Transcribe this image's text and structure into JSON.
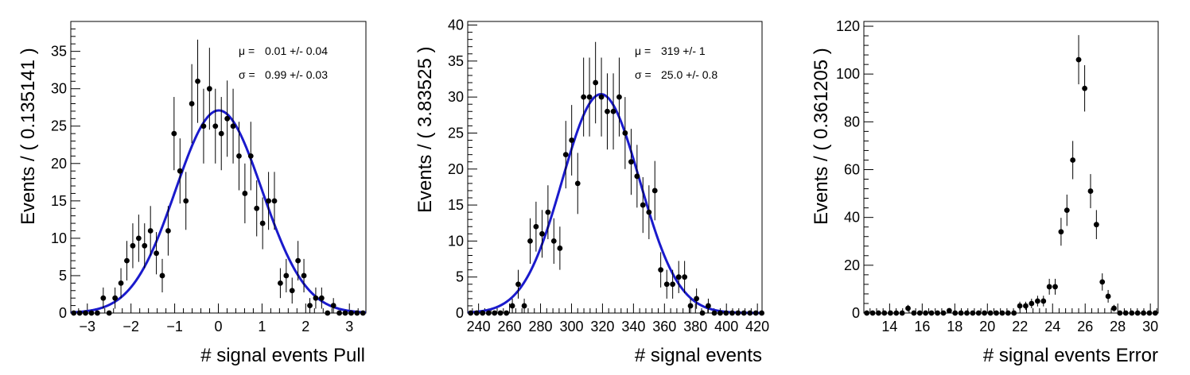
{
  "chart_data": [
    {
      "type": "scatter",
      "xlabel": "# signal events Pull",
      "ylabel": "Events / ( 0.135141 )",
      "xlim": [
        -3.378525,
        3.378525
      ],
      "ylim": [
        0,
        39
      ],
      "xticks_major": [
        -3,
        -2,
        -1,
        0,
        1,
        2,
        3
      ],
      "xtick_labels": [
        "−3",
        "−2",
        "−1",
        "0",
        "1",
        "2",
        "3"
      ],
      "xtick_minor_step": 0.2,
      "yticks_major": [
        0,
        5,
        10,
        15,
        20,
        25,
        30,
        35
      ],
      "ytick_labels": [
        "0",
        "5",
        "10",
        "15",
        "20",
        "25",
        "30",
        "35"
      ],
      "ytick_minor_step": 1,
      "marker_color": "#000000",
      "fit_color": "#1a1acc",
      "series": [
        {
          "x": [
            -3.311,
            -3.176,
            -3.041,
            -2.905,
            -2.77,
            -2.635,
            -2.5,
            -2.365,
            -2.23,
            -2.095,
            -1.959,
            -1.824,
            -1.689,
            -1.554,
            -1.419,
            -1.284,
            -1.149,
            -1.014,
            -0.878,
            -0.743,
            -0.608,
            -0.473,
            -0.338,
            -0.203,
            -0.068,
            0.068,
            0.203,
            0.338,
            0.473,
            0.608,
            0.743,
            0.878,
            1.014,
            1.149,
            1.284,
            1.419,
            1.554,
            1.689,
            1.824,
            1.959,
            2.095,
            2.23,
            2.365,
            2.5,
            2.635,
            2.77,
            2.905,
            3.041,
            3.176,
            3.311
          ],
          "y": [
            0,
            0,
            0,
            0,
            0,
            2,
            0,
            2,
            4,
            7,
            9,
            10,
            9,
            11,
            8,
            5,
            11,
            24,
            19,
            15,
            28,
            31,
            25,
            30,
            25,
            24,
            26,
            25,
            21,
            16,
            21,
            14,
            12,
            15,
            15,
            4,
            5,
            3,
            7,
            5,
            1,
            2,
            2,
            0,
            1,
            0,
            0,
            0,
            0,
            0
          ]
        }
      ],
      "fit": {
        "mu": 0.01,
        "sigma": 0.99,
        "amplitude": 27.1
      },
      "annotations": [
        {
          "symbol": "μ =",
          "value": "0.01 +/- 0.04"
        },
        {
          "symbol": "σ =",
          "value": "0.99 +/- 0.03"
        }
      ]
    },
    {
      "type": "scatter",
      "xlabel": "# signal events",
      "ylabel": "Events / ( 3.83525 )",
      "xlim": [
        233,
        423
      ],
      "ylim": [
        0,
        40.5
      ],
      "xticks_major": [
        240,
        260,
        280,
        300,
        320,
        340,
        360,
        380,
        400,
        420
      ],
      "xtick_labels": [
        "240",
        "260",
        "280",
        "300",
        "320",
        "340",
        "360",
        "380",
        "400",
        "420"
      ],
      "xtick_minor_step": 4,
      "yticks_major": [
        0,
        5,
        10,
        15,
        20,
        25,
        30,
        35,
        40
      ],
      "ytick_labels": [
        "0",
        "5",
        "10",
        "15",
        "20",
        "25",
        "30",
        "35",
        "40"
      ],
      "ytick_minor_step": 1,
      "marker_color": "#000000",
      "fit_color": "#1a1acc",
      "series": [
        {
          "x": [
            234.9,
            238.8,
            242.6,
            246.5,
            250.3,
            254.1,
            258.0,
            261.8,
            265.6,
            269.5,
            273.3,
            277.1,
            281.0,
            284.8,
            288.6,
            292.5,
            296.3,
            300.1,
            304.0,
            307.8,
            311.6,
            315.5,
            319.3,
            323.1,
            327.0,
            330.8,
            334.6,
            338.5,
            342.3,
            346.1,
            350.0,
            353.8,
            357.6,
            361.5,
            365.3,
            369.2,
            373.0,
            376.8,
            380.7,
            384.5,
            388.3,
            392.2,
            396.0,
            399.8,
            403.7,
            407.5,
            411.3,
            415.2,
            419.0,
            422.8
          ],
          "y": [
            0,
            0,
            0,
            0,
            0,
            0,
            0,
            1,
            4,
            1,
            10,
            12,
            11,
            14,
            10,
            9,
            22,
            24,
            18,
            30,
            30,
            32,
            30,
            28,
            28,
            30,
            25,
            21,
            19,
            15,
            14,
            17,
            6,
            4,
            4,
            5,
            5,
            1,
            2,
            0,
            1,
            0,
            0,
            0,
            0,
            0,
            0,
            0,
            0,
            0
          ]
        }
      ],
      "fit": {
        "mu": 319,
        "sigma": 25.0,
        "amplitude": 30.4
      },
      "annotations": [
        {
          "symbol": "μ =",
          "value": "319 +/- 1"
        },
        {
          "symbol": "σ =",
          "value": "25.0 +/- 0.8"
        }
      ]
    },
    {
      "type": "scatter",
      "xlabel": "# signal events Error",
      "ylabel": "Events / ( 0.361205 )",
      "xlim": [
        12.42,
        30.48
      ],
      "ylim": [
        0,
        122
      ],
      "xticks_major": [
        14,
        16,
        18,
        20,
        22,
        24,
        26,
        28,
        30
      ],
      "xtick_labels": [
        "14",
        "16",
        "18",
        "20",
        "22",
        "24",
        "26",
        "28",
        "30"
      ],
      "xtick_minor_step": 0.4,
      "yticks_major": [
        0,
        20,
        40,
        60,
        80,
        100,
        120
      ],
      "ytick_labels": [
        "0",
        "20",
        "40",
        "60",
        "80",
        "100",
        "120"
      ],
      "ytick_minor_step": 4,
      "marker_color": "#000000",
      "series": [
        {
          "x": [
            12.6,
            12.96,
            13.32,
            13.68,
            14.05,
            14.41,
            14.77,
            15.13,
            15.49,
            15.85,
            16.21,
            16.57,
            16.94,
            17.3,
            17.66,
            18.02,
            18.38,
            18.74,
            19.1,
            19.46,
            19.82,
            20.19,
            20.55,
            20.91,
            21.27,
            21.63,
            21.99,
            22.35,
            22.71,
            23.08,
            23.44,
            23.8,
            24.16,
            24.52,
            24.88,
            25.24,
            25.6,
            25.97,
            26.33,
            26.69,
            27.05,
            27.41,
            27.77,
            28.13,
            28.49,
            28.86,
            29.22,
            29.58,
            29.94,
            30.3
          ],
          "y": [
            0,
            0,
            0,
            0,
            0,
            0,
            0,
            2,
            0,
            0,
            0,
            0,
            0,
            0,
            1,
            0,
            0,
            0,
            0,
            0,
            0,
            0,
            0,
            0,
            0,
            0,
            3,
            3,
            4,
            5,
            5,
            11,
            11,
            34,
            43,
            64,
            106,
            94,
            51,
            37,
            13,
            7,
            2,
            0,
            0,
            0,
            0,
            0,
            0,
            0
          ]
        }
      ]
    }
  ]
}
